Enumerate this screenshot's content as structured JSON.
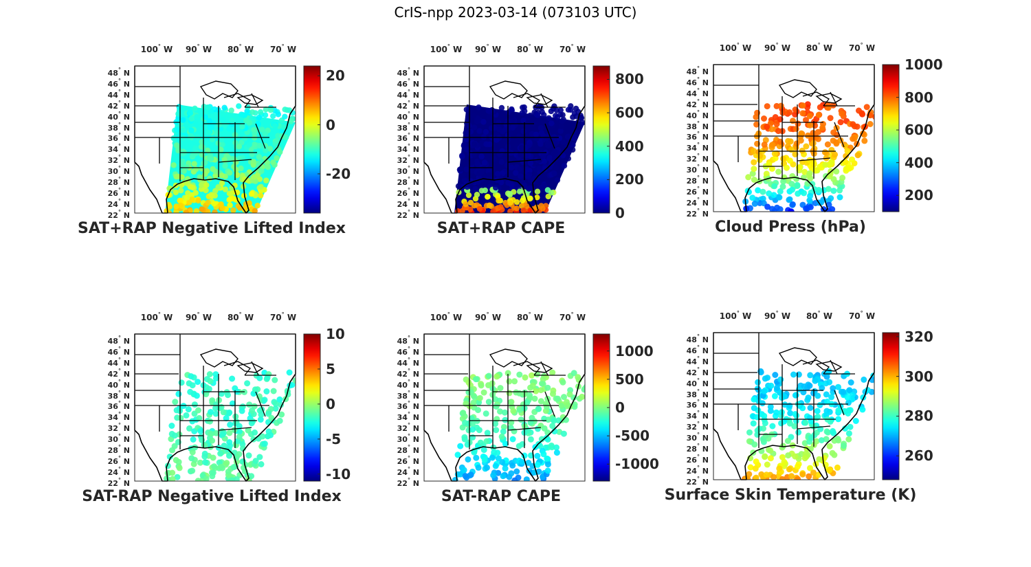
{
  "title": "CrIS-npp 2023-03-14 (073103 UTC)",
  "lon_labels": [
    "100",
    "90",
    "80",
    "70"
  ],
  "lon_suffix": "W",
  "lat_labels": [
    "48",
    "46",
    "44",
    "42",
    "40",
    "38",
    "36",
    "34",
    "32",
    "30",
    "28",
    "26",
    "24",
    "22"
  ],
  "lat_suffix": "N",
  "degree_symbol": "°",
  "colormap": "jet",
  "panels": [
    {
      "title": "SAT+RAP Negative Lifted Index",
      "colorbar": {
        "min": -36,
        "max": 24,
        "ticks": [
          {
            "value": 20,
            "label": "20"
          },
          {
            "value": 0,
            "label": "0"
          },
          {
            "value": -20,
            "label": "-20"
          }
        ]
      },
      "coverage": "full-swath",
      "dominant_value": -12,
      "south_value": 6
    },
    {
      "title": "SAT+RAP CAPE",
      "colorbar": {
        "min": 0,
        "max": 880,
        "ticks": [
          {
            "value": 800,
            "label": "800"
          },
          {
            "value": 600,
            "label": "600"
          },
          {
            "value": 400,
            "label": "400"
          },
          {
            "value": 200,
            "label": "200"
          },
          {
            "value": 0,
            "label": "0"
          }
        ]
      },
      "coverage": "full-swath",
      "dominant_value": 0,
      "south_value": 750
    },
    {
      "title": "Cloud Press (hPa)",
      "colorbar": {
        "min": 100,
        "max": 1000,
        "ticks": [
          {
            "value": 1000,
            "label": "1000"
          },
          {
            "value": 800,
            "label": "800"
          },
          {
            "value": 600,
            "label": "600"
          },
          {
            "value": 400,
            "label": "400"
          },
          {
            "value": 200,
            "label": "200"
          }
        ]
      },
      "coverage": "cloudy",
      "dominant_value": 820,
      "south_value": 250
    },
    {
      "title": "SAT-RAP Negative Lifted Index",
      "colorbar": {
        "min": -11,
        "max": 10,
        "ticks": [
          {
            "value": 10,
            "label": "10"
          },
          {
            "value": 5,
            "label": "5"
          },
          {
            "value": 0,
            "label": "0"
          },
          {
            "value": -5,
            "label": "-5"
          },
          {
            "value": -10,
            "label": "-10"
          }
        ]
      },
      "coverage": "clear",
      "dominant_value": -2,
      "south_value": -1
    },
    {
      "title": "SAT-RAP CAPE",
      "colorbar": {
        "min": -1300,
        "max": 1300,
        "ticks": [
          {
            "value": 1000,
            "label": "1000"
          },
          {
            "value": 500,
            "label": "500"
          },
          {
            "value": 0,
            "label": "0"
          },
          {
            "value": -500,
            "label": "-500"
          },
          {
            "value": -1000,
            "label": "-1000"
          }
        ]
      },
      "coverage": "clear",
      "dominant_value": 0,
      "south_value": -600
    },
    {
      "title": "Surface Skin Temperature (K)",
      "colorbar": {
        "min": 248,
        "max": 322,
        "ticks": [
          {
            "value": 320,
            "label": "320"
          },
          {
            "value": 300,
            "label": "300"
          },
          {
            "value": 280,
            "label": "280"
          },
          {
            "value": 260,
            "label": "260"
          }
        ]
      },
      "coverage": "clear",
      "dominant_value": 272,
      "south_value": 302
    }
  ]
}
